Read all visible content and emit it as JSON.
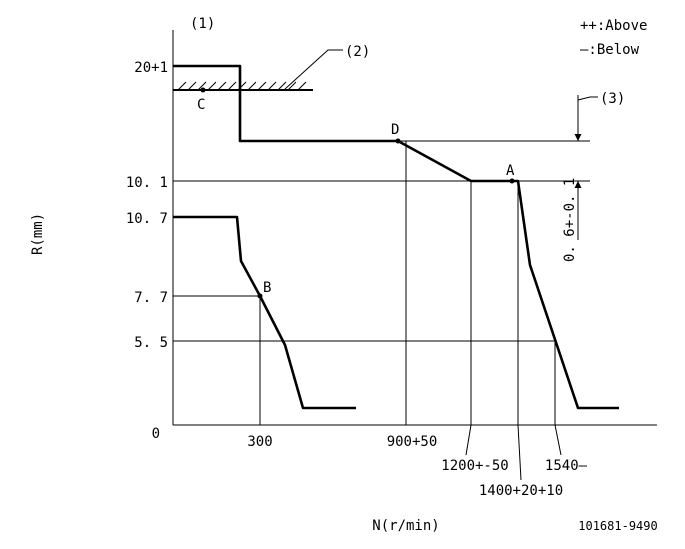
{
  "labels": {
    "note1": "(1)",
    "above": "++:Above",
    "below": "—:Below",
    "note2": "(2)",
    "note3": "(3)",
    "y_20": "20+1",
    "y_101": "10. 1",
    "y_107": "10. 7",
    "y_77": "7. 7",
    "y_55": "5. 5",
    "y_0": "0",
    "point_a": "A",
    "point_b": "B",
    "point_c": "C",
    "point_d": "D",
    "tolerance": "0. 6+-0. 1",
    "y_axis": "R(mm)",
    "x_axis": "N(r/min)",
    "x_300": "300",
    "x_900": "900+50",
    "x_1200": "1200+-50",
    "x_1400": "1400+20+10",
    "x_1540": "1540—",
    "code": "101681-9490"
  }
}
